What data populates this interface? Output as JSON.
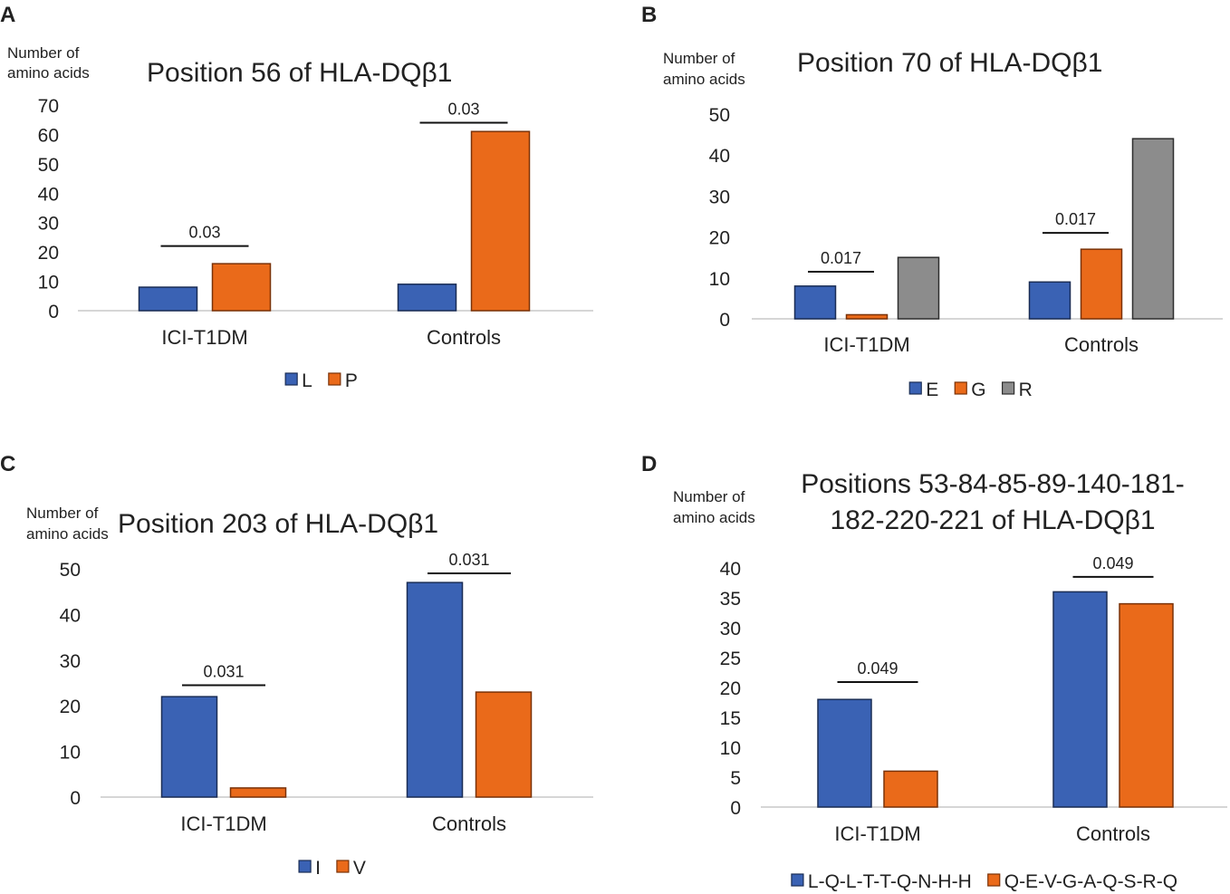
{
  "colors": {
    "blue": "#3a62b4",
    "blue_edge": "#1a2d55",
    "orange": "#ea6a1a",
    "orange_edge": "#7a3208",
    "gray": "#8c8c8c",
    "gray_edge": "#2e2e2e",
    "axis": "#c8c8c8",
    "text": "#222222"
  },
  "chart_data": [
    {
      "panel": "A",
      "type": "bar",
      "title": [
        "Position 56 of HLA-DQβ1"
      ],
      "ylabel": [
        "Number of",
        "amino acids"
      ],
      "xlabel": "",
      "categories": [
        "ICI-T1DM",
        "Controls"
      ],
      "series": [
        {
          "name": "L",
          "color": "blue",
          "values": [
            8,
            9
          ]
        },
        {
          "name": "P",
          "color": "orange",
          "values": [
            16,
            61
          ]
        }
      ],
      "ylim": [
        0,
        70
      ],
      "yticks": [
        "0",
        "10",
        "20",
        "30",
        "40",
        "50",
        "60",
        "70"
      ],
      "annotations": [
        {
          "text": "0.03",
          "category": 0,
          "from_series": 0,
          "to_series": 1,
          "level": 22
        },
        {
          "text": "0.03",
          "category": 1,
          "from_series": 0,
          "to_series": 1,
          "level": 64
        }
      ],
      "grid": false,
      "legend_position": "bottom"
    },
    {
      "panel": "B",
      "type": "bar",
      "title": [
        "Position 70 of HLA-DQβ1"
      ],
      "ylabel": [
        "Number of",
        "amino acids"
      ],
      "xlabel": "",
      "categories": [
        "ICI-T1DM",
        "Controls"
      ],
      "series": [
        {
          "name": "E",
          "color": "blue",
          "values": [
            8,
            9
          ]
        },
        {
          "name": "G",
          "color": "orange",
          "values": [
            1,
            17
          ]
        },
        {
          "name": "R",
          "color": "gray",
          "values": [
            15,
            44
          ]
        }
      ],
      "ylim": [
        0,
        50
      ],
      "yticks": [
        "0",
        "10",
        "20",
        "30",
        "40",
        "50"
      ],
      "annotations": [
        {
          "text": "0.017",
          "category": 0,
          "from_series": 0,
          "to_series": 1,
          "level": 11.5
        },
        {
          "text": "0.017",
          "category": 1,
          "from_series": 0,
          "to_series": 1,
          "level": 21
        }
      ],
      "grid": false,
      "legend_position": "bottom"
    },
    {
      "panel": "C",
      "type": "bar",
      "title": [
        "Position 203 of HLA-DQβ1"
      ],
      "ylabel": [
        "Number of",
        "amino acids"
      ],
      "xlabel": "",
      "categories": [
        "ICI-T1DM",
        "Controls"
      ],
      "series": [
        {
          "name": "I",
          "color": "blue",
          "values": [
            22,
            47
          ]
        },
        {
          "name": "V",
          "color": "orange",
          "values": [
            2,
            23
          ]
        }
      ],
      "ylim": [
        0,
        50
      ],
      "yticks": [
        "0",
        "10",
        "20",
        "30",
        "40",
        "50"
      ],
      "annotations": [
        {
          "text": "0.031",
          "category": 0,
          "from_series": 0,
          "to_series": 1,
          "level": 24.5
        },
        {
          "text": "0.031",
          "category": 1,
          "from_series": 0,
          "to_series": 1,
          "level": 49
        }
      ],
      "grid": false,
      "legend_position": "bottom"
    },
    {
      "panel": "D",
      "type": "bar",
      "title": [
        "Positions 53-84-85-89-140-181-",
        "182-220-221 of HLA-DQβ1"
      ],
      "ylabel": [
        "Number of",
        "amino acids"
      ],
      "xlabel": "",
      "categories": [
        "ICI-T1DM",
        "Controls"
      ],
      "series": [
        {
          "name": "L-Q-L-T-T-Q-N-H-H",
          "color": "blue",
          "values": [
            18,
            36
          ]
        },
        {
          "name": "Q-E-V-G-A-Q-S-R-Q",
          "color": "orange",
          "values": [
            6,
            34
          ]
        }
      ],
      "ylim": [
        0,
        40
      ],
      "yticks": [
        "0",
        "5",
        "10",
        "15",
        "20",
        "25",
        "30",
        "35",
        "40"
      ],
      "annotations": [
        {
          "text": "0.049",
          "category": 0,
          "from_series": 0,
          "to_series": 1,
          "level": 20.9
        },
        {
          "text": "0.049",
          "category": 1,
          "from_series": 0,
          "to_series": 1,
          "level": 38.5
        }
      ],
      "grid": false,
      "legend_position": "bottom"
    }
  ]
}
